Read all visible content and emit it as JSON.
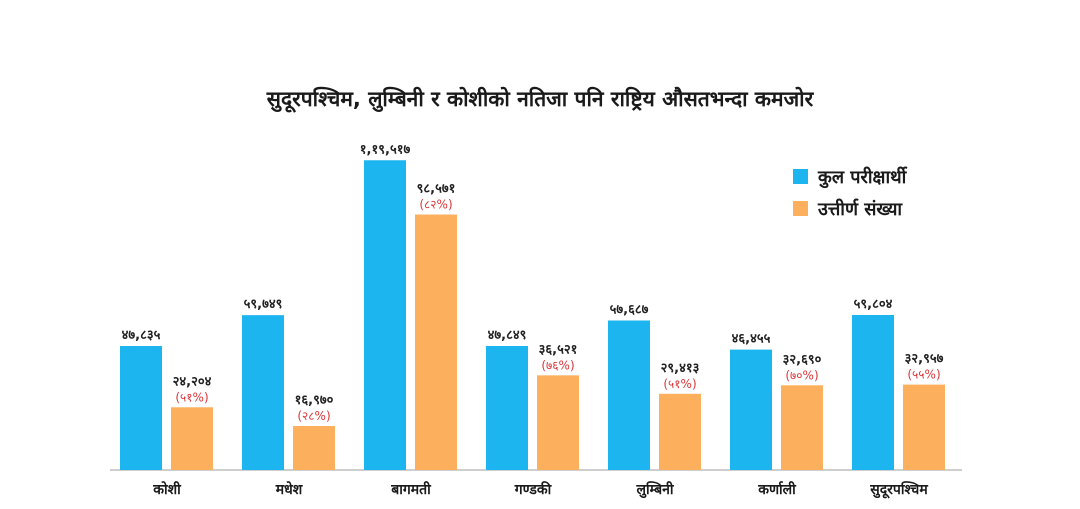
{
  "chart_data": {
    "type": "bar",
    "title": "सुदूरपश्चिम, लुम्बिनी र कोशीको नतिजा पनि राष्ट्रिय औसतभन्दा कमजोर",
    "categories": [
      "कोशी",
      "मधेश",
      "बागमती",
      "गण्डकी",
      "लुम्बिनी",
      "कर्णाली",
      "सुदूरपश्चिम"
    ],
    "series": [
      {
        "name": "कुल परीक्षार्थी",
        "color": "#1cb5ef",
        "values": [
          47835,
          59749,
          119517,
          47849,
          57687,
          46455,
          59804
        ],
        "labels": [
          "४७,८३५",
          "५९,७४९",
          "१,१९,५१७",
          "४७,८४९",
          "५७,६८७",
          "४६,४५५",
          "५९,८०४"
        ]
      },
      {
        "name": "उत्तीर्ण संख्या",
        "color": "#fcb05e",
        "values": [
          24204,
          16970,
          98571,
          36521,
          29413,
          32690,
          32957
        ],
        "labels": [
          "२४,२०४",
          "१६,९७०",
          "९८,५७१",
          "३६,५२१",
          "२९,४१३",
          "३२,६९०",
          "३२,९५७"
        ],
        "percent_labels": [
          "(५१%)",
          "(२८%)",
          "(८२%)",
          "(७६%)",
          "(५१%)",
          "(७०%)",
          "(५५%)"
        ]
      }
    ],
    "ylim": [
      0,
      120000
    ],
    "grid": false,
    "legend_position": "top-right",
    "label_color": "#222222",
    "percent_color": "#d9373a",
    "axis_color": "#bdbdbd"
  }
}
